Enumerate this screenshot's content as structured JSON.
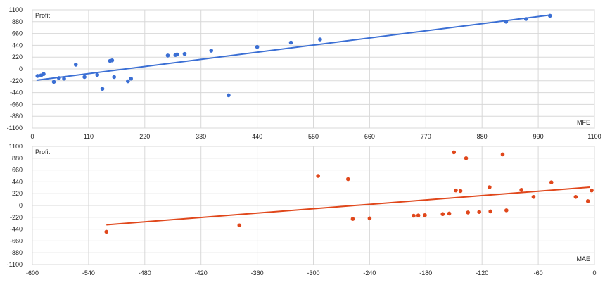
{
  "chart_data": [
    {
      "type": "scatter",
      "title": "",
      "ylabel": "Profit",
      "xlabel": "MFE",
      "xlim": [
        0,
        1100
      ],
      "ylim": [
        -1100,
        1100
      ],
      "xticks": [
        0,
        110,
        220,
        330,
        440,
        550,
        660,
        770,
        880,
        990,
        1100
      ],
      "yticks": [
        1100,
        880,
        660,
        440,
        220,
        0,
        -220,
        -440,
        -660,
        -880,
        -1100
      ],
      "grid": true,
      "color": "#3b6fd4",
      "points": [
        {
          "x": 10,
          "y": -130
        },
        {
          "x": 17,
          "y": -120
        },
        {
          "x": 22,
          "y": -95
        },
        {
          "x": 42,
          "y": -240
        },
        {
          "x": 52,
          "y": -170
        },
        {
          "x": 62,
          "y": -180
        },
        {
          "x": 85,
          "y": 80
        },
        {
          "x": 102,
          "y": -150
        },
        {
          "x": 127,
          "y": -110
        },
        {
          "x": 137,
          "y": -370
        },
        {
          "x": 152,
          "y": 150
        },
        {
          "x": 156,
          "y": 160
        },
        {
          "x": 160,
          "y": -150
        },
        {
          "x": 187,
          "y": -230
        },
        {
          "x": 193,
          "y": -180
        },
        {
          "x": 265,
          "y": 250
        },
        {
          "x": 280,
          "y": 260
        },
        {
          "x": 283,
          "y": 270
        },
        {
          "x": 298,
          "y": 280
        },
        {
          "x": 350,
          "y": 340
        },
        {
          "x": 384,
          "y": -490
        },
        {
          "x": 440,
          "y": 410
        },
        {
          "x": 506,
          "y": 490
        },
        {
          "x": 563,
          "y": 550
        },
        {
          "x": 927,
          "y": 880
        },
        {
          "x": 966,
          "y": 930
        },
        {
          "x": 1013,
          "y": 990
        }
      ],
      "trendline": [
        {
          "x": 8,
          "y": -210
        },
        {
          "x": 1010,
          "y": 1000
        }
      ]
    },
    {
      "type": "scatter",
      "title": "",
      "ylabel": "Profit",
      "xlabel": "MAE",
      "xlim": [
        -600,
        0
      ],
      "ylim": [
        -1100,
        1100
      ],
      "xticks": [
        -600,
        -540,
        -480,
        -420,
        -360,
        -300,
        -240,
        -180,
        -120,
        -60,
        0
      ],
      "yticks": [
        1100,
        880,
        660,
        440,
        220,
        0,
        -220,
        -440,
        -660,
        -880,
        -1100
      ],
      "grid": true,
      "color": "#e0471b",
      "points": [
        {
          "x": -521,
          "y": -490
        },
        {
          "x": -379,
          "y": -370
        },
        {
          "x": -295,
          "y": 550
        },
        {
          "x": -263,
          "y": 490
        },
        {
          "x": -258,
          "y": -250
        },
        {
          "x": -240,
          "y": -240
        },
        {
          "x": -193,
          "y": -190
        },
        {
          "x": -188,
          "y": -185
        },
        {
          "x": -181,
          "y": -180
        },
        {
          "x": -162,
          "y": -160
        },
        {
          "x": -155,
          "y": -150
        },
        {
          "x": -150,
          "y": 990
        },
        {
          "x": -148,
          "y": 280
        },
        {
          "x": -143,
          "y": 270
        },
        {
          "x": -137,
          "y": 880
        },
        {
          "x": -135,
          "y": -130
        },
        {
          "x": -123,
          "y": -120
        },
        {
          "x": -112,
          "y": 340
        },
        {
          "x": -111,
          "y": -110
        },
        {
          "x": -98,
          "y": 950
        },
        {
          "x": -94,
          "y": -90
        },
        {
          "x": -78,
          "y": 290
        },
        {
          "x": -65,
          "y": 160
        },
        {
          "x": -46,
          "y": 430
        },
        {
          "x": -20,
          "y": 160
        },
        {
          "x": -7,
          "y": 80
        },
        {
          "x": -3,
          "y": 280
        }
      ],
      "trendline": [
        {
          "x": -521,
          "y": -360
        },
        {
          "x": -5,
          "y": 340
        }
      ]
    }
  ]
}
